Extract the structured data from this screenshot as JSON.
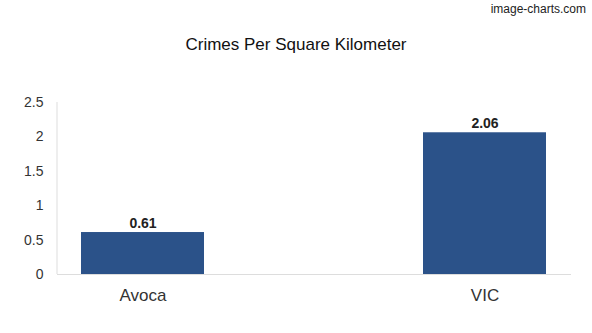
{
  "chart_data": {
    "type": "bar",
    "title": "Crimes Per Square Kilometer",
    "annotations": [
      "image-charts.com"
    ],
    "categories": [
      "Avoca",
      "VIC"
    ],
    "values": [
      0.61,
      2.06
    ],
    "color": "#2b5289",
    "ylim": [
      0,
      2.5
    ],
    "yticks": [
      0,
      0.5,
      1,
      1.5,
      2,
      2.5
    ],
    "grid": false,
    "data_labels": true
  }
}
